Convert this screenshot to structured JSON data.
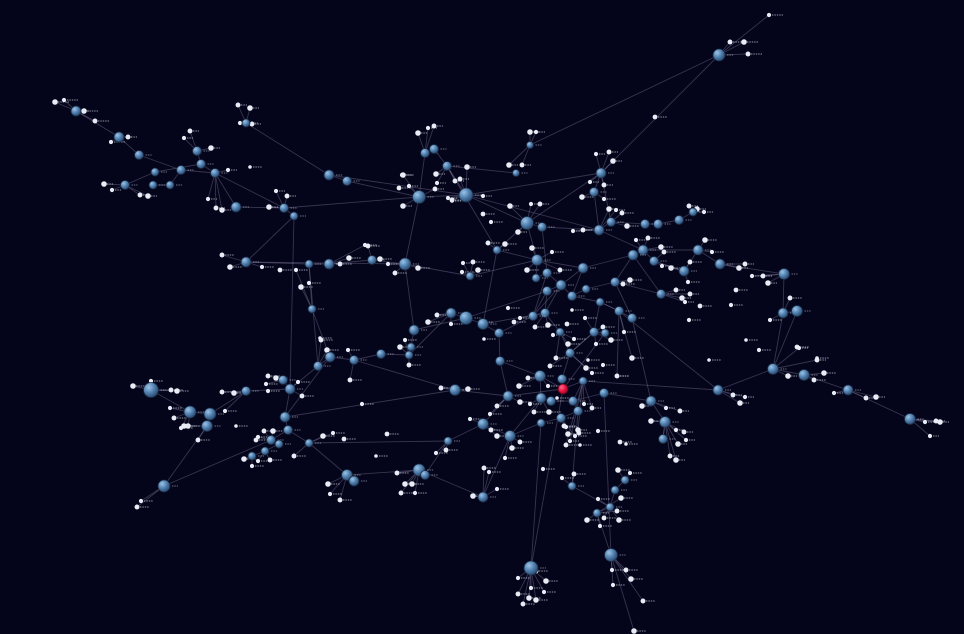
{
  "view": {
    "background": "#04041a"
  },
  "colors": {
    "edge": "#9a93b8",
    "hub_node": "#4f7fae",
    "hub_node_highlight": "#9cc3e6",
    "leaf_node": "#e8ecf4",
    "selected_node": "#e8103f"
  },
  "graph": {
    "selected_node_id": "sel",
    "node_labels_legible": false
  }
}
